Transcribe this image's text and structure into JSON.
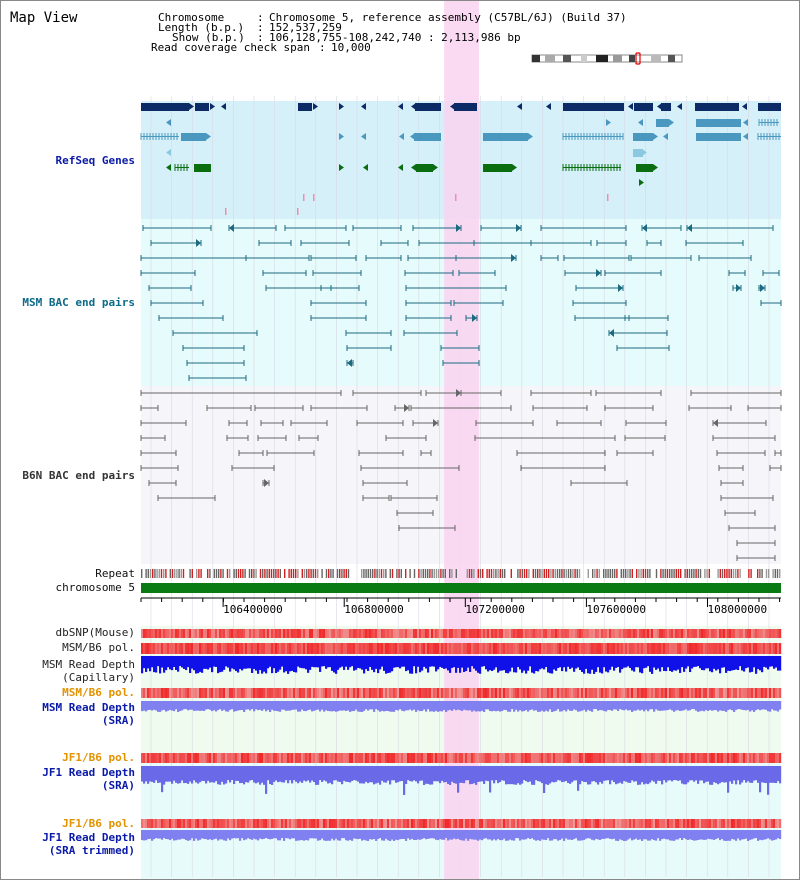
{
  "view": {
    "title": "Map View",
    "chromosome_key": "Chromosome",
    "chromosome_value": "Chromosome 5, reference assembly (C57BL/6J) (Build 37)",
    "length_key": "Length (b.p.)",
    "length_value": "152,537,259",
    "show_key": "Show (b.p.)",
    "show_value": "106,128,755-108,242,740 : 2,113,986 bp",
    "coverage_key": "Read coverage check span",
    "coverage_value": "10,000",
    "separator": ":"
  },
  "tracks": {
    "refseq": "RefSeq Genes",
    "msm_bac": "MSM BAC end pairs",
    "b6n_bac": "B6N BAC end pairs",
    "repeat": "Repeat",
    "chromosome": "chromosome 5",
    "dbsnp": "dbSNP(Mouse)",
    "msm_b6_pol_1": "MSM/B6 pol.",
    "msm_depth_cap_1": "MSM Read Depth",
    "msm_depth_cap_2": "(Capillary)",
    "msm_b6_pol_2": "MSM/B6 pol.",
    "msm_depth_sra_1": "MSM Read Depth",
    "msm_depth_sra_2": "(SRA)",
    "jf1_b6_pol_1": "JF1/B6 pol.",
    "jf1_depth_sra_1": "JF1 Read Depth",
    "jf1_depth_sra_2": "(SRA)",
    "jf1_b6_pol_2": "JF1/B6 pol.",
    "jf1_depth_trim_1": "JF1 Read Depth",
    "jf1_depth_trim_2": "(SRA trimmed)"
  },
  "axis": {
    "ticks": [
      "106400000",
      "106800000",
      "107200000",
      "107600000",
      "108000000"
    ],
    "tick_values": [
      106400000,
      106800000,
      107200000,
      107600000,
      108000000
    ],
    "range": [
      106128755,
      108242740
    ]
  },
  "highlight": {
    "start": 107130000,
    "end": 107245000,
    "color": "#f9d4f0"
  },
  "colors": {
    "refseq_bg": "#d6f0fa",
    "msm_bg": "#e6fbfb",
    "b6n_bg": "#f6f6fa",
    "gene_dark": "#0c2a66",
    "gene_mid": "#4a98c0",
    "gene_light": "#8cc8e0",
    "gene_green": "#0a6e10",
    "msm_pair": "#1c6a80",
    "b6n_pair": "#666666",
    "chromosome": "#0a7a12",
    "depth_blue": "#1010e8",
    "depth_violet": "#8080f0",
    "pol_red": "#f04040"
  }
}
